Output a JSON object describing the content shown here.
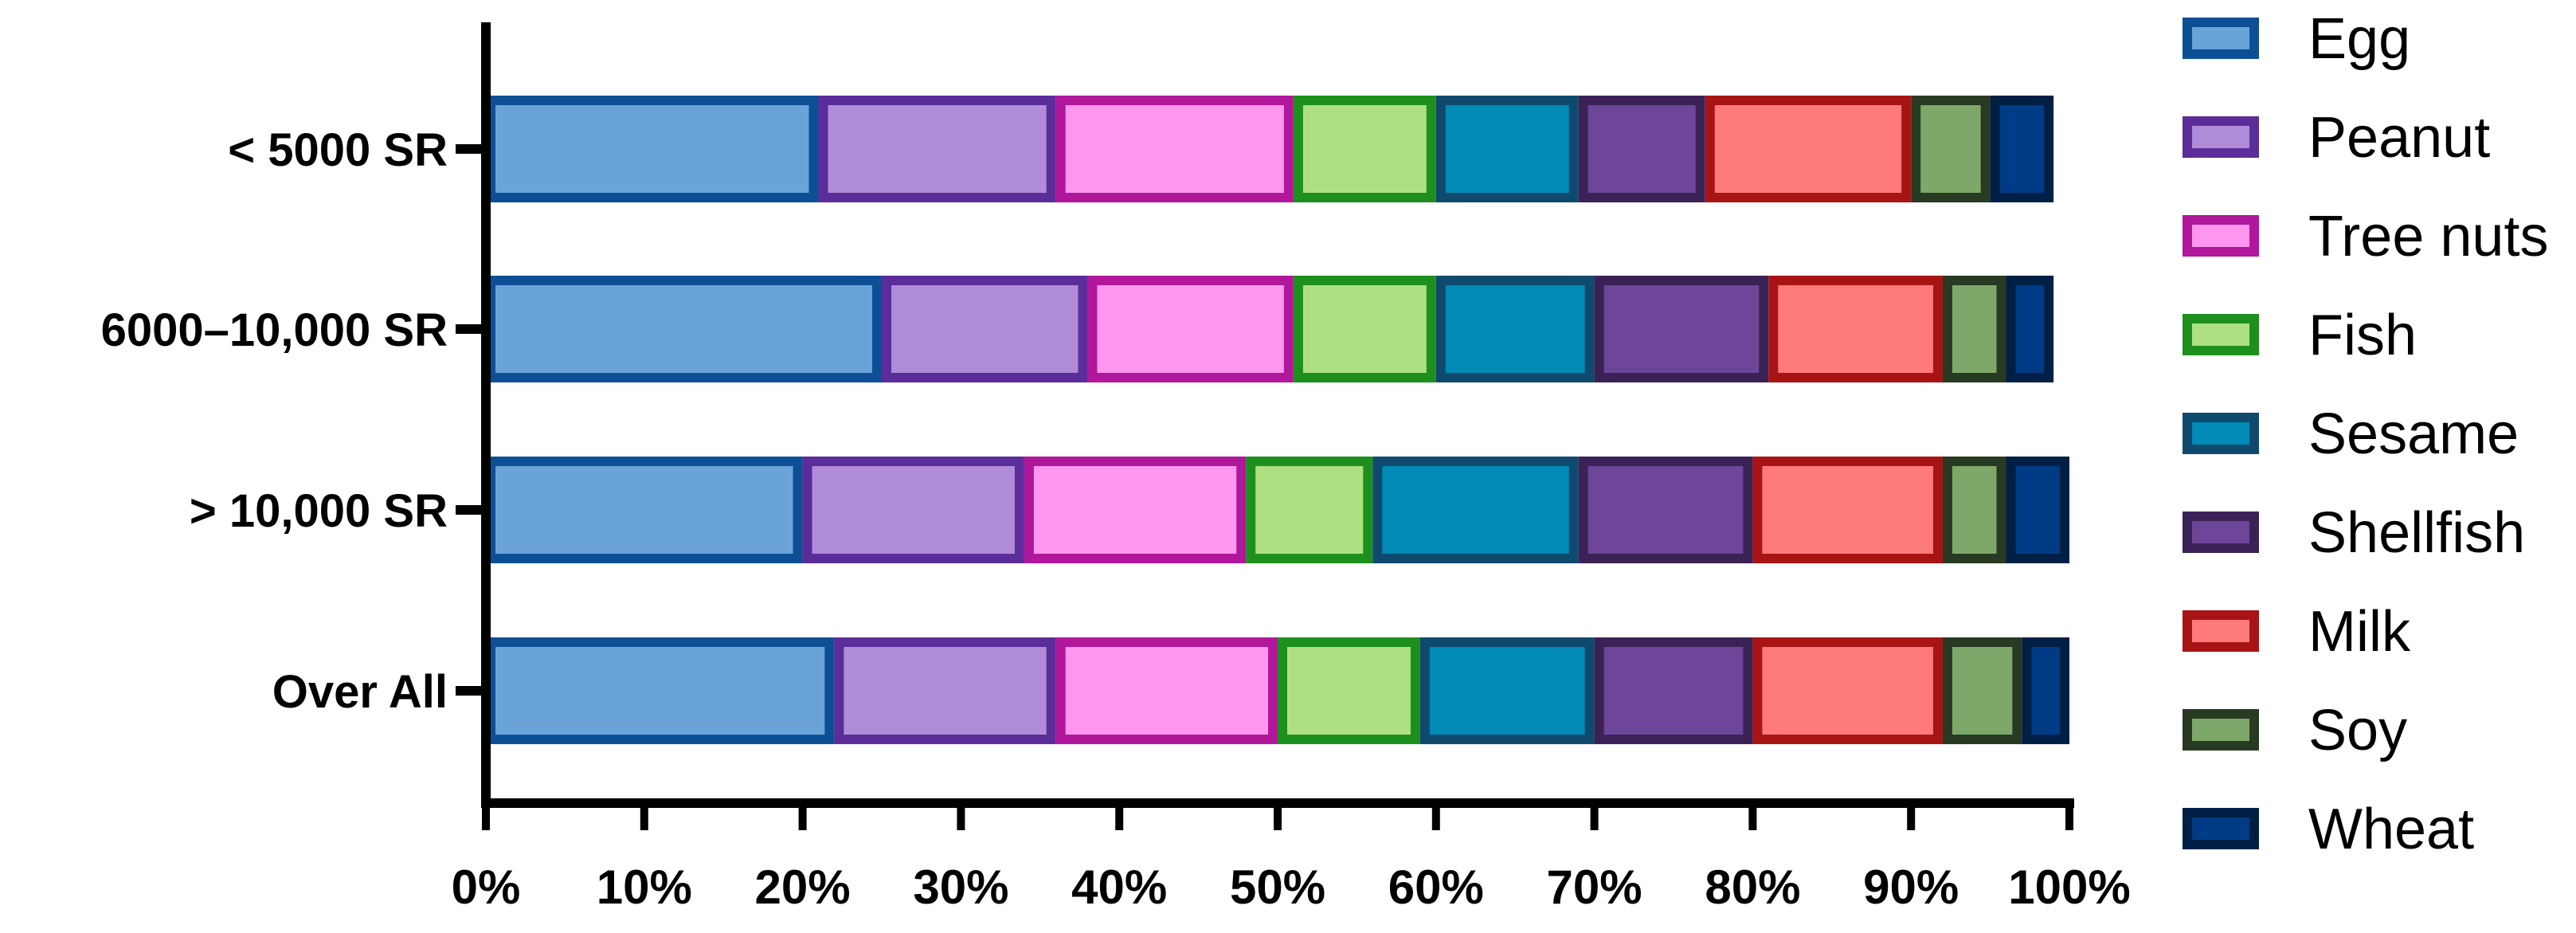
{
  "chart_data": {
    "type": "bar",
    "orientation": "horizontal",
    "stacked": true,
    "title": "",
    "xlabel": "",
    "ylabel": "",
    "xlim": [
      0,
      100
    ],
    "x_ticks": [
      "0%",
      "10%",
      "20%",
      "30%",
      "40%",
      "50%",
      "60%",
      "70%",
      "80%",
      "90%",
      "100%"
    ],
    "categories": [
      "< 5000 SR",
      "6000–10,000 SR",
      "> 10,000 SR",
      "Over All"
    ],
    "grid": false,
    "legend_position": "right",
    "series": [
      {
        "name": "Egg",
        "fill": "#6aa3d8",
        "stroke": "#0d4f94",
        "values": [
          21,
          25,
          20,
          22
        ]
      },
      {
        "name": "Peanut",
        "fill": "#b08cd8",
        "stroke": "#5b2d9a",
        "values": [
          15,
          13,
          14,
          14
        ]
      },
      {
        "name": "Tree nuts",
        "fill": "#fd96ee",
        "stroke": "#b0179a",
        "values": [
          15,
          13,
          14,
          14
        ]
      },
      {
        "name": "Fish",
        "fill": "#aee082",
        "stroke": "#1d8f1d",
        "values": [
          9,
          9,
          8,
          9
        ]
      },
      {
        "name": "Sesame",
        "fill": "#008ab5",
        "stroke": "#0f4a6e",
        "values": [
          9,
          10,
          13,
          11
        ]
      },
      {
        "name": "Shellfish",
        "fill": "#6d4599",
        "stroke": "#3a2257",
        "values": [
          8,
          11,
          11,
          10
        ]
      },
      {
        "name": "Milk",
        "fill": "#ff7a7a",
        "stroke": "#a81414",
        "values": [
          13,
          11,
          12,
          12
        ]
      },
      {
        "name": "Soy",
        "fill": "#7ea86a",
        "stroke": "#283a22",
        "values": [
          5,
          4,
          4,
          5
        ]
      },
      {
        "name": "Wheat",
        "fill": "#003b86",
        "stroke": "#001f45",
        "values": [
          4,
          3,
          4,
          3
        ]
      }
    ]
  }
}
